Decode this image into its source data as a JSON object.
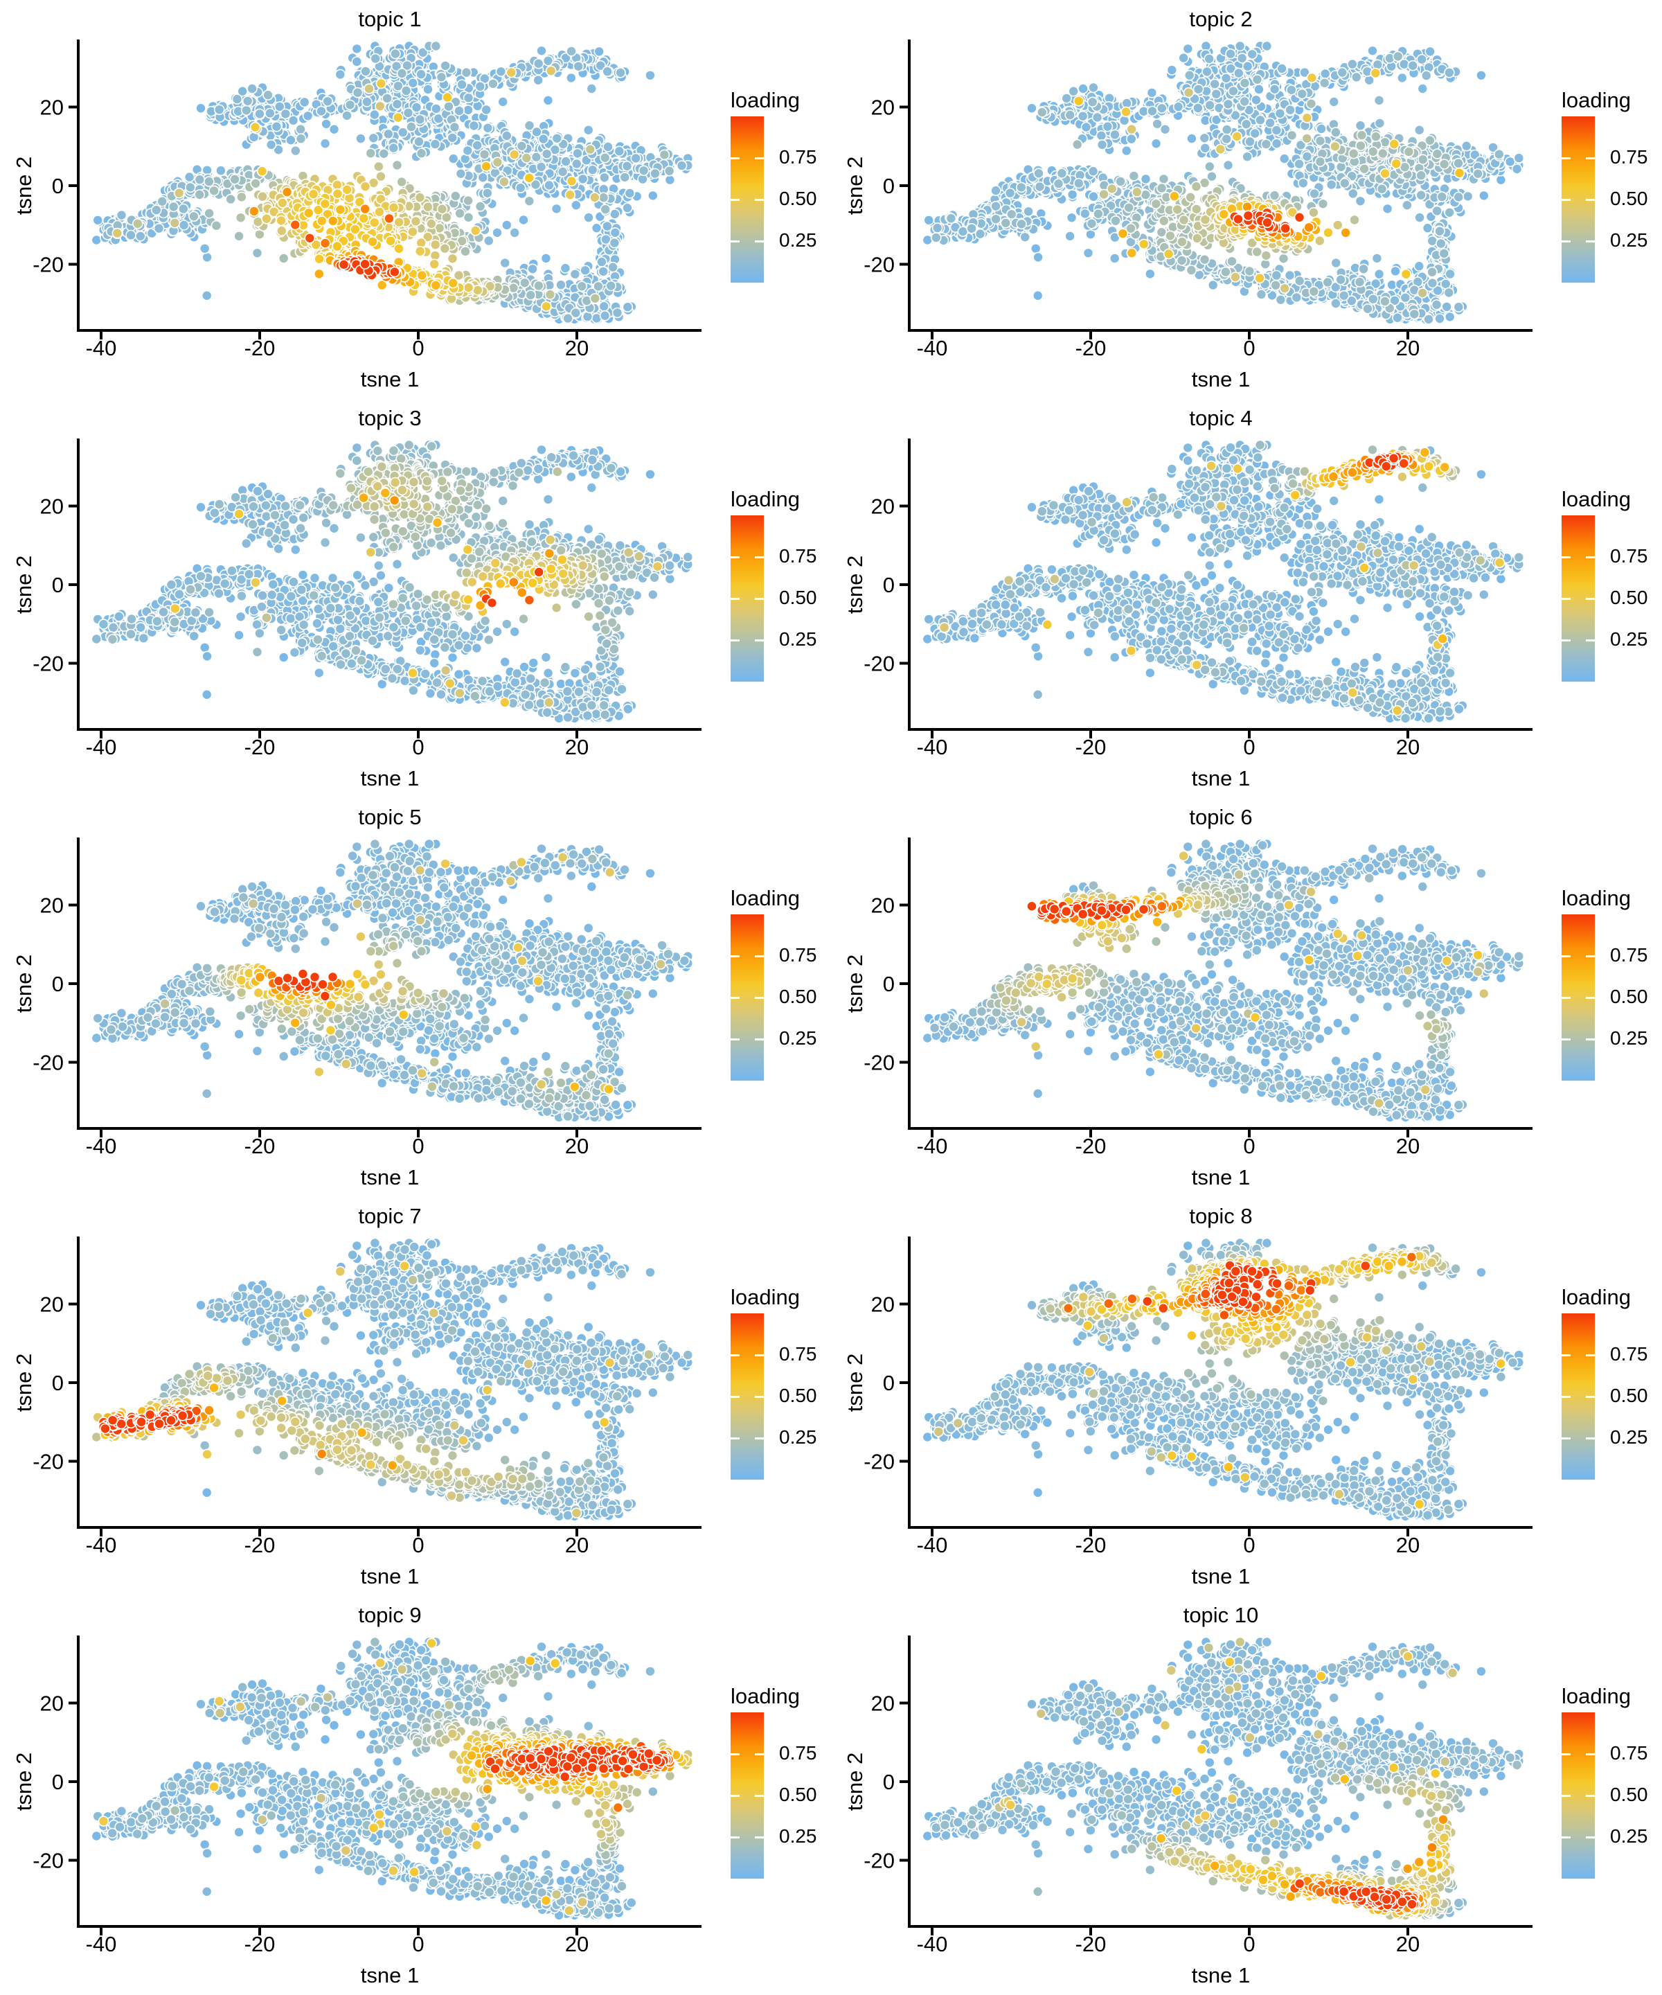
{
  "figure": {
    "rows": 5,
    "columns": 2
  },
  "panels": [
    {
      "title": "topic 1"
    },
    {
      "title": "topic 2"
    },
    {
      "title": "topic 3"
    },
    {
      "title": "topic 4"
    },
    {
      "title": "topic 5"
    },
    {
      "title": "topic 6"
    },
    {
      "title": "topic 7"
    },
    {
      "title": "topic 8"
    },
    {
      "title": "topic 9"
    },
    {
      "title": "topic 10"
    }
  ],
  "axes": {
    "x_label": "tsne 1",
    "y_label": "tsne 2",
    "x_ticks": [
      -40,
      -20,
      0,
      20
    ],
    "y_ticks": [
      20,
      0,
      -20
    ]
  },
  "legend": {
    "title": "loading",
    "tick_labels": [
      "0.75",
      "0.50",
      "0.25"
    ],
    "tick_values": [
      0.75,
      0.5,
      0.25
    ],
    "bar_range": [
      0,
      1
    ]
  },
  "colors": {
    "background": "#ffffff",
    "axis": "#000000",
    "text": "#000000",
    "point_stroke": "#ffffff"
  },
  "chart_data": {
    "type": "scatter",
    "xlabel": "tsne 1",
    "ylabel": "tsne 2",
    "x_ticks": [
      -40,
      -20,
      0,
      20
    ],
    "y_ticks": [
      20,
      0,
      -20
    ],
    "xlim": [
      -43,
      37
    ],
    "ylim": [
      -37,
      38
    ],
    "grid": false,
    "legend_position": "right",
    "point_radius": 7,
    "seed": 42,
    "color_scale": {
      "name": "loading",
      "range": [
        0,
        1
      ],
      "ticks": [
        0.25,
        0.5,
        0.75
      ],
      "stops": [
        [
          0.0,
          "#74B7EC"
        ],
        [
          0.1,
          "#8BBBD9"
        ],
        [
          0.2,
          "#A5BFBB"
        ],
        [
          0.3,
          "#BFC49A"
        ],
        [
          0.4,
          "#D7C77A"
        ],
        [
          0.5,
          "#ECCA50"
        ],
        [
          0.58,
          "#F6C829"
        ],
        [
          0.7,
          "#FAAB0E"
        ],
        [
          0.8,
          "#FB9206"
        ],
        [
          0.9,
          "#F96408"
        ],
        [
          1.0,
          "#F23A08"
        ]
      ]
    },
    "embedding_clusters": {
      "blobs": [
        [
          -31.5,
          -5.5,
          1.5,
          1.2,
          30
        ],
        [
          -26,
          0.5,
          2.2,
          1.8,
          55
        ],
        [
          -30,
          -1.5,
          1.4,
          1.2,
          22
        ],
        [
          -21.5,
          2.5,
          1.6,
          1.4,
          30
        ],
        [
          -17,
          13.5,
          3.5,
          1.8,
          40
        ],
        [
          -21.5,
          23,
          1.3,
          1.1,
          14
        ],
        [
          -2.5,
          28.5,
          3.4,
          3.2,
          165
        ],
        [
          -5.5,
          21.5,
          2.6,
          2.2,
          80
        ],
        [
          2,
          17,
          3.2,
          2.6,
          90
        ],
        [
          -2,
          11.5,
          2.6,
          1.8,
          55
        ],
        [
          5.5,
          23.5,
          1.6,
          2.2,
          35
        ],
        [
          19.5,
          31.5,
          2.2,
          1.3,
          45
        ],
        [
          24.5,
          29,
          1.4,
          1.1,
          18
        ],
        [
          12.5,
          9.5,
          3.4,
          3.0,
          120
        ],
        [
          20,
          7,
          4.2,
          2.8,
          135
        ],
        [
          27.5,
          5.5,
          2.6,
          2.0,
          80
        ],
        [
          30.5,
          5.8,
          1.8,
          1.4,
          30
        ],
        [
          16.5,
          1.5,
          4.5,
          2.2,
          90
        ],
        [
          9,
          3.5,
          2.2,
          2.4,
          45
        ],
        [
          23.5,
          -3,
          2.2,
          2.2,
          45
        ],
        [
          -13.5,
          -2.5,
          3.2,
          2.6,
          85
        ],
        [
          -17.5,
          -8,
          2.6,
          2.2,
          55
        ],
        [
          -8,
          -7.5,
          2.8,
          2.4,
          65
        ],
        [
          -2.5,
          -11,
          3.0,
          2.4,
          70
        ],
        [
          4.5,
          -13.5,
          3.0,
          2.2,
          60
        ],
        [
          -12,
          -14.5,
          2.6,
          2.0,
          55
        ],
        [
          3,
          -5.5,
          2.4,
          2.0,
          45
        ],
        [
          -2,
          -3,
          2.0,
          1.8,
          35
        ],
        [
          19.5,
          -30,
          2.6,
          1.7,
          80
        ],
        [
          23,
          -24.5,
          1.8,
          2.4,
          55
        ],
        [
          13,
          -24.5,
          2.0,
          1.6,
          40
        ],
        [
          22,
          -32.5,
          2.2,
          1.2,
          35
        ]
      ],
      "arms": [
        [
          -40,
          -11.5,
          -27,
          -8.5,
          2.2,
          145
        ],
        [
          -27,
          18.3,
          -10,
          20.3,
          1.9,
          120
        ],
        [
          7.5,
          26,
          18.5,
          31.8,
          1.7,
          75
        ],
        [
          -11,
          -17.5,
          -2,
          -23,
          2.0,
          95
        ],
        [
          -2,
          -23,
          8,
          -27,
          2.0,
          95
        ],
        [
          8,
          -27,
          18,
          -30,
          2.0,
          105
        ],
        [
          23.5,
          -21,
          24.5,
          -9,
          1.6,
          60
        ]
      ],
      "uniform_scatter": {
        "n": 30,
        "x": [
          -30,
          28
        ],
        "y": [
          -28,
          26
        ]
      }
    },
    "topics": [
      {
        "title": "topic 1",
        "hotspots": [
          [
            -8.5,
            -22.5,
            3.5,
            2.6,
            0.97
          ],
          [
            -3,
            -18,
            6,
            4,
            0.5
          ],
          [
            2,
            -26,
            6,
            3,
            0.45
          ],
          [
            -13,
            -11,
            6,
            5,
            0.38
          ],
          [
            -9,
            3,
            5,
            4,
            0.3
          ],
          [
            -4,
            -6,
            7,
            5,
            0.28
          ],
          [
            -17,
            -3,
            6,
            4,
            0.22
          ]
        ]
      },
      {
        "title": "topic 2",
        "hotspots": [
          [
            0,
            -7.5,
            2.0,
            1.6,
            0.95
          ],
          [
            4,
            -10,
            3.5,
            2.2,
            0.5
          ],
          [
            8,
            -11.5,
            5,
            3,
            0.3
          ],
          [
            0,
            -13,
            9,
            5,
            0.22
          ],
          [
            -5,
            -4,
            5,
            4,
            0.2
          ],
          [
            17,
            8,
            6,
            5,
            0.12
          ]
        ]
      },
      {
        "title": "topic 3",
        "hotspots": [
          [
            11.5,
            -4.8,
            2.6,
            2.0,
            0.92
          ],
          [
            8,
            -2.5,
            4,
            3,
            0.45
          ],
          [
            14,
            1,
            5,
            4,
            0.3
          ],
          [
            18,
            4,
            5,
            3,
            0.22
          ],
          [
            0,
            19,
            9,
            8,
            0.16
          ],
          [
            -3,
            26,
            5,
            5,
            0.15
          ],
          [
            20,
            -9,
            5,
            4,
            0.15
          ]
        ]
      },
      {
        "title": "topic 4",
        "hotspots": [
          [
            17.5,
            31.7,
            2.8,
            1.5,
            0.97
          ],
          [
            13,
            28.5,
            3.5,
            2.2,
            0.55
          ],
          [
            9.5,
            26,
            3,
            2,
            0.35
          ],
          [
            20.5,
            28.5,
            3,
            2,
            0.35
          ],
          [
            24,
            29.5,
            2,
            1.5,
            0.25
          ]
        ]
      },
      {
        "title": "topic 5",
        "hotspots": [
          [
            -13.5,
            2,
            2.4,
            2.0,
            0.88
          ],
          [
            -17,
            -0.5,
            4,
            3,
            0.5
          ],
          [
            -9,
            0.5,
            5,
            4,
            0.38
          ],
          [
            -20,
            3,
            4,
            3,
            0.3
          ],
          [
            -5,
            7,
            5,
            4,
            0.2
          ],
          [
            -14,
            -8,
            5,
            4,
            0.2
          ],
          [
            0,
            -3,
            4,
            3,
            0.18
          ],
          [
            18,
            -27,
            5,
            3,
            0.1
          ]
        ]
      },
      {
        "title": "topic 6",
        "hotspots": [
          [
            -26.5,
            18.7,
            2.2,
            1.7,
            0.97
          ],
          [
            -21,
            18.3,
            3,
            2,
            0.85
          ],
          [
            -15.5,
            19,
            3.5,
            2.2,
            0.65
          ],
          [
            -10.5,
            19.8,
            3,
            2,
            0.5
          ],
          [
            -18,
            11,
            5,
            4,
            0.35
          ],
          [
            -24,
            1,
            4,
            3,
            0.32
          ],
          [
            -28,
            -4,
            4,
            3,
            0.22
          ],
          [
            21,
            -11,
            3.5,
            3.5,
            0.28
          ],
          [
            -4,
            22,
            4,
            3,
            0.2
          ]
        ]
      },
      {
        "title": "topic 7",
        "hotspots": [
          [
            -38.8,
            -11,
            2.2,
            1.8,
            0.97
          ],
          [
            -34,
            -9.8,
            3,
            2.2,
            0.85
          ],
          [
            -30,
            -8.5,
            3,
            2.2,
            0.6
          ],
          [
            -26,
            -6.5,
            3,
            2,
            0.4
          ],
          [
            -20,
            -10,
            5,
            3.5,
            0.3
          ],
          [
            -10,
            -15,
            6,
            4,
            0.27
          ],
          [
            0,
            -20,
            7,
            4,
            0.24
          ],
          [
            10,
            -24,
            6,
            3,
            0.2
          ],
          [
            -26,
            1,
            3,
            2.5,
            0.3
          ]
        ]
      },
      {
        "title": "topic 8",
        "hotspots": [
          [
            0,
            27.5,
            3,
            2.4,
            0.97
          ],
          [
            -3,
            23,
            4.5,
            3.5,
            0.72
          ],
          [
            7,
            25,
            3,
            2.5,
            0.55
          ],
          [
            3,
            19,
            4.5,
            3.5,
            0.55
          ],
          [
            -11,
            20,
            4.5,
            2.5,
            0.5
          ],
          [
            15,
            29.5,
            4.5,
            2.2,
            0.5
          ],
          [
            21,
            31,
            3,
            1.8,
            0.35
          ],
          [
            -20,
            18.5,
            4,
            2.2,
            0.35
          ],
          [
            0,
            12,
            5.5,
            3.5,
            0.35
          ],
          [
            16,
            14,
            4,
            3,
            0.2
          ],
          [
            -1,
            3,
            7,
            5,
            0.15
          ]
        ]
      },
      {
        "title": "topic 9",
        "hotspots": [
          [
            29.5,
            5.5,
            3.2,
            2.4,
            0.95
          ],
          [
            23,
            6,
            4,
            3,
            0.8
          ],
          [
            16,
            6.5,
            5,
            3.5,
            0.62
          ],
          [
            10,
            4.5,
            4.5,
            3.5,
            0.45
          ],
          [
            18,
            0,
            6,
            3,
            0.4
          ],
          [
            6,
            11,
            4.5,
            3.5,
            0.28
          ],
          [
            24,
            -7,
            3.5,
            3.5,
            0.3
          ],
          [
            22,
            -14,
            3,
            3,
            0.25
          ],
          [
            12,
            26,
            4,
            3,
            0.18
          ],
          [
            4,
            -2,
            4,
            3,
            0.22
          ]
        ]
      },
      {
        "title": "topic 10",
        "hotspots": [
          [
            19,
            -30.5,
            3.2,
            2.2,
            0.97
          ],
          [
            13.5,
            -28.5,
            3.5,
            2.2,
            0.75
          ],
          [
            8,
            -26.5,
            3.5,
            2.2,
            0.55
          ],
          [
            2,
            -23.5,
            4,
            2.5,
            0.4
          ],
          [
            23,
            -21,
            2.5,
            3.5,
            0.55
          ],
          [
            -4,
            -21,
            4,
            2.5,
            0.28
          ],
          [
            24,
            -12,
            2.5,
            3.5,
            0.32
          ],
          [
            22,
            -4,
            3,
            3,
            0.22
          ],
          [
            -10,
            -18,
            4,
            3,
            0.18
          ],
          [
            17,
            -2,
            5,
            3,
            0.15
          ]
        ]
      }
    ]
  }
}
